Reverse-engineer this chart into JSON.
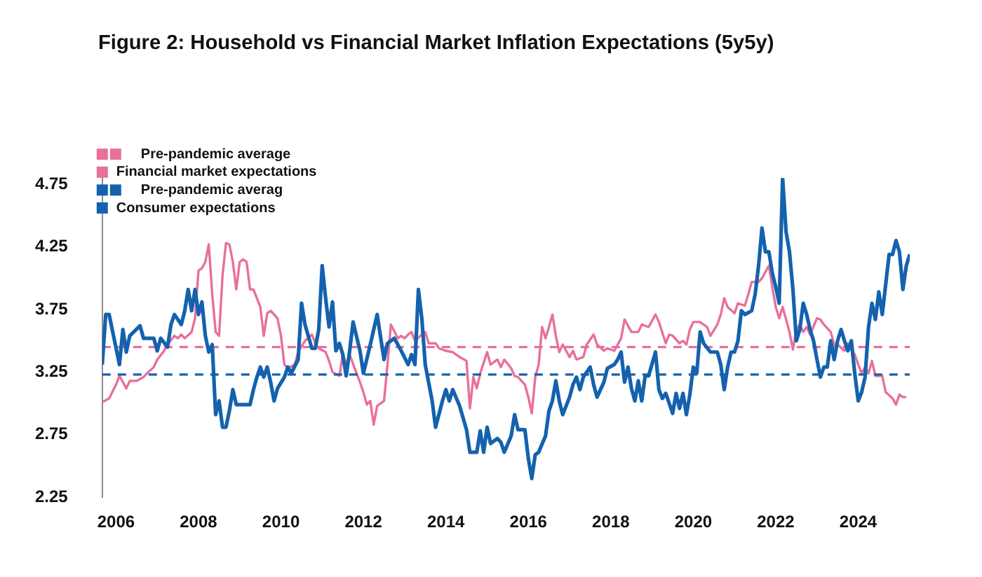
{
  "chart_data": {
    "type": "line",
    "title": "Figure 2: Household vs Financial Market Inflation Expectations (5y5y)",
    "xlim": [
      "2005-09",
      "2025-04"
    ],
    "xticks": [
      "2006",
      "2008",
      "2010",
      "2012",
      "2014",
      "2016",
      "2018",
      "2020",
      "2022",
      "2024"
    ],
    "ylim": [
      2.25,
      4.8
    ],
    "yticks": [
      2.25,
      2.75,
      3.25,
      3.75,
      4.25,
      4.75
    ],
    "legend": "top left",
    "series": [
      {
        "name": "Pre-pandemic average",
        "color": "#e8709c",
        "line_style": "dashed",
        "x": [
          "2005-09",
          "2025-04"
        ],
        "values": [
          3.45,
          3.45
        ]
      },
      {
        "name": "Financial market expectations",
        "color": "#e8709c",
        "x": [
          "2005-09",
          "2005-11",
          "2006-01",
          "2006-02",
          "2006-04",
          "2006-05",
          "2006-07",
          "2006-09",
          "2006-10",
          "2006-12",
          "2007-01",
          "2007-03",
          "2007-04",
          "2007-06",
          "2007-07",
          "2007-08",
          "2007-09",
          "2007-11",
          "2007-12",
          "2008-01",
          "2008-02",
          "2008-03",
          "2008-04",
          "2008-05",
          "2008-06",
          "2008-07",
          "2008-08",
          "2008-09",
          "2008-10",
          "2008-11",
          "2008-12",
          "2009-01",
          "2009-02",
          "2009-03",
          "2009-04",
          "2009-05",
          "2009-06",
          "2009-07",
          "2009-08",
          "2009-09",
          "2009-10",
          "2009-12",
          "2010-01",
          "2010-02",
          "2010-03",
          "2010-05",
          "2010-06",
          "2010-08",
          "2010-10",
          "2010-11",
          "2010-12",
          "2011-02",
          "2011-03",
          "2011-04",
          "2011-06",
          "2011-07",
          "2011-08",
          "2011-09",
          "2011-11",
          "2011-12",
          "2012-01",
          "2012-02",
          "2012-03",
          "2012-04",
          "2012-05",
          "2012-07",
          "2012-08",
          "2012-09",
          "2012-11",
          "2012-12",
          "2013-01",
          "2013-02",
          "2013-03",
          "2013-04",
          "2013-06",
          "2013-07",
          "2013-08",
          "2013-10",
          "2013-11",
          "2014-01",
          "2014-03",
          "2014-05",
          "2014-07",
          "2014-08",
          "2014-09",
          "2014-10",
          "2014-11",
          "2015-01",
          "2015-02",
          "2015-04",
          "2015-05",
          "2015-06",
          "2015-08",
          "2015-09",
          "2015-10",
          "2015-12",
          "2016-01",
          "2016-02",
          "2016-03",
          "2016-04",
          "2016-05",
          "2016-06",
          "2016-07",
          "2016-08",
          "2016-09",
          "2016-10",
          "2016-11",
          "2017-01",
          "2017-02",
          "2017-03",
          "2017-05",
          "2017-06",
          "2017-08",
          "2017-09",
          "2017-11",
          "2017-12",
          "2018-02",
          "2018-04",
          "2018-05",
          "2018-07",
          "2018-09",
          "2018-10",
          "2018-12",
          "2019-02",
          "2019-03",
          "2019-05",
          "2019-06",
          "2019-07",
          "2019-09",
          "2019-10",
          "2019-11",
          "2019-12",
          "2020-01",
          "2020-03",
          "2020-05",
          "2020-06",
          "2020-08",
          "2020-09",
          "2020-10",
          "2020-11",
          "2021-01",
          "2021-02",
          "2021-04",
          "2021-05",
          "2021-06",
          "2021-08",
          "2021-09",
          "2021-11",
          "2021-12",
          "2022-01",
          "2022-02",
          "2022-03",
          "2022-04",
          "2022-05",
          "2022-06",
          "2022-07",
          "2022-08",
          "2022-09",
          "2022-10",
          "2022-11",
          "2023-01",
          "2023-02",
          "2023-03",
          "2023-05",
          "2023-06",
          "2023-07",
          "2023-09",
          "2023-10",
          "2023-12",
          "2024-01",
          "2024-02",
          "2024-03",
          "2024-04",
          "2024-05",
          "2024-06",
          "2024-08",
          "2024-09",
          "2024-11",
          "2024-12",
          "2025-01",
          "2025-02",
          "2025-03"
        ],
        "values": [
          3.01,
          3.04,
          3.15,
          3.22,
          3.12,
          3.18,
          3.18,
          3.21,
          3.24,
          3.29,
          3.35,
          3.42,
          3.47,
          3.54,
          3.52,
          3.55,
          3.52,
          3.57,
          3.68,
          4.06,
          4.08,
          4.13,
          4.27,
          3.87,
          3.57,
          3.54,
          4.02,
          4.28,
          4.27,
          4.13,
          3.91,
          4.13,
          4.15,
          4.13,
          3.91,
          3.91,
          3.84,
          3.77,
          3.54,
          3.72,
          3.74,
          3.68,
          3.54,
          3.31,
          3.28,
          3.31,
          3.41,
          3.5,
          3.55,
          3.48,
          3.44,
          3.41,
          3.34,
          3.25,
          3.22,
          3.39,
          3.31,
          3.39,
          3.24,
          3.17,
          3.09,
          2.99,
          3.02,
          2.83,
          2.98,
          3.02,
          3.31,
          3.63,
          3.52,
          3.54,
          3.52,
          3.55,
          3.57,
          3.5,
          3.55,
          3.57,
          3.48,
          3.48,
          3.44,
          3.42,
          3.41,
          3.37,
          3.34,
          2.96,
          3.21,
          3.12,
          3.24,
          3.41,
          3.31,
          3.35,
          3.29,
          3.35,
          3.28,
          3.22,
          3.21,
          3.15,
          3.05,
          2.92,
          3.21,
          3.31,
          3.61,
          3.52,
          3.61,
          3.71,
          3.54,
          3.41,
          3.47,
          3.37,
          3.42,
          3.35,
          3.37,
          3.47,
          3.55,
          3.47,
          3.42,
          3.44,
          3.42,
          3.52,
          3.67,
          3.57,
          3.57,
          3.63,
          3.61,
          3.71,
          3.65,
          3.48,
          3.55,
          3.54,
          3.48,
          3.5,
          3.47,
          3.59,
          3.65,
          3.65,
          3.61,
          3.54,
          3.63,
          3.71,
          3.84,
          3.77,
          3.72,
          3.8,
          3.78,
          3.87,
          3.97,
          3.97,
          4.0,
          4.1,
          3.93,
          3.77,
          3.68,
          3.77,
          3.67,
          3.57,
          3.43,
          3.59,
          3.63,
          3.57,
          3.61,
          3.55,
          3.68,
          3.67,
          3.63,
          3.57,
          3.47,
          3.47,
          3.42,
          3.48,
          3.39,
          3.31,
          3.24,
          3.29,
          3.24,
          3.34,
          3.22,
          3.22,
          3.09,
          3.04,
          2.99,
          3.07,
          3.05,
          3.05
        ]
      },
      {
        "name": "Pre-pandemic averag",
        "color": "#1462ae",
        "line_style": "dashed",
        "x": [
          "2005-09",
          "2025-04"
        ],
        "values": [
          3.23,
          3.23
        ]
      },
      {
        "name": "Consumer expectations",
        "color": "#1462ae",
        "x": [
          "2005-09",
          "2005-10",
          "2005-11",
          "2006-02",
          "2006-03",
          "2006-04",
          "2006-05",
          "2006-08",
          "2006-09",
          "2006-12",
          "2007-01",
          "2007-02",
          "2007-04",
          "2007-05",
          "2007-06",
          "2007-08",
          "2007-09",
          "2007-10",
          "2007-11",
          "2007-12",
          "2008-01",
          "2008-02",
          "2008-03",
          "2008-04",
          "2008-05",
          "2008-06",
          "2008-07",
          "2008-08",
          "2008-09",
          "2008-10",
          "2008-11",
          "2008-12",
          "2009-04",
          "2009-05",
          "2009-06",
          "2009-07",
          "2009-08",
          "2009-09",
          "2009-10",
          "2009-11",
          "2009-12",
          "2010-02",
          "2010-03",
          "2010-04",
          "2010-06",
          "2010-07",
          "2010-08",
          "2010-10",
          "2010-11",
          "2010-12",
          "2011-01",
          "2011-02",
          "2011-03",
          "2011-04",
          "2011-05",
          "2011-06",
          "2011-07",
          "2011-08",
          "2011-09",
          "2011-10",
          "2011-12",
          "2012-01",
          "2012-03",
          "2012-05",
          "2012-07",
          "2012-08",
          "2012-10",
          "2012-12",
          "2013-02",
          "2013-03",
          "2013-04",
          "2013-05",
          "2013-06",
          "2013-07",
          "2013-09",
          "2013-10",
          "2013-12",
          "2014-01",
          "2014-02",
          "2014-03",
          "2014-05",
          "2014-07",
          "2014-08",
          "2014-10",
          "2014-11",
          "2014-12",
          "2015-01",
          "2015-02",
          "2015-04",
          "2015-05",
          "2015-06",
          "2015-08",
          "2015-09",
          "2015-10",
          "2015-12",
          "2016-01",
          "2016-02",
          "2016-03",
          "2016-04",
          "2016-06",
          "2016-07",
          "2016-08",
          "2016-09",
          "2016-10",
          "2016-11",
          "2017-01",
          "2017-02",
          "2017-03",
          "2017-04",
          "2017-05",
          "2017-07",
          "2017-08",
          "2017-09",
          "2017-11",
          "2017-12",
          "2018-02",
          "2018-03",
          "2018-04",
          "2018-05",
          "2018-06",
          "2018-07",
          "2018-08",
          "2018-09",
          "2018-10",
          "2018-11",
          "2018-12",
          "2019-02",
          "2019-03",
          "2019-04",
          "2019-05",
          "2019-07",
          "2019-08",
          "2019-09",
          "2019-10",
          "2019-11",
          "2019-12",
          "2020-01",
          "2020-02",
          "2020-03",
          "2020-04",
          "2020-06",
          "2020-08",
          "2020-09",
          "2020-10",
          "2020-11",
          "2020-12",
          "2021-01",
          "2021-02",
          "2021-03",
          "2021-04",
          "2021-06",
          "2021-07",
          "2021-08",
          "2021-09",
          "2021-10",
          "2021-11",
          "2021-12",
          "2022-01",
          "2022-02",
          "2022-03",
          "2022-04",
          "2022-05",
          "2022-06",
          "2022-07",
          "2022-08",
          "2022-09",
          "2022-10",
          "2022-11",
          "2022-12",
          "2023-01",
          "2023-02",
          "2023-03",
          "2023-04",
          "2023-05",
          "2023-06",
          "2023-07",
          "2023-08",
          "2023-09",
          "2023-10",
          "2023-11",
          "2023-12",
          "2024-01",
          "2024-02",
          "2024-03",
          "2024-04",
          "2024-05",
          "2024-06",
          "2024-07",
          "2024-08",
          "2024-09",
          "2024-10",
          "2024-11",
          "2024-12",
          "2025-01",
          "2025-02",
          "2025-03",
          "2025-04"
        ],
        "values": [
          3.31,
          3.71,
          3.71,
          3.31,
          3.59,
          3.41,
          3.54,
          3.62,
          3.52,
          3.52,
          3.42,
          3.52,
          3.45,
          3.63,
          3.71,
          3.63,
          3.74,
          3.91,
          3.74,
          3.91,
          3.71,
          3.81,
          3.54,
          3.41,
          3.47,
          2.91,
          3.02,
          2.81,
          2.81,
          2.94,
          3.11,
          2.99,
          2.99,
          3.11,
          3.21,
          3.29,
          3.21,
          3.29,
          3.17,
          3.02,
          3.12,
          3.21,
          3.29,
          3.24,
          3.35,
          3.8,
          3.63,
          3.44,
          3.44,
          3.59,
          4.1,
          3.84,
          3.61,
          3.81,
          3.42,
          3.48,
          3.39,
          3.22,
          3.42,
          3.65,
          3.42,
          3.24,
          3.47,
          3.71,
          3.35,
          3.48,
          3.52,
          3.42,
          3.31,
          3.39,
          3.31,
          3.91,
          3.68,
          3.31,
          3.02,
          2.81,
          3.02,
          3.11,
          3.02,
          3.11,
          2.98,
          2.79,
          2.61,
          2.61,
          2.78,
          2.61,
          2.81,
          2.68,
          2.72,
          2.69,
          2.61,
          2.74,
          2.91,
          2.79,
          2.79,
          2.56,
          2.4,
          2.59,
          2.61,
          2.74,
          2.94,
          3.02,
          3.18,
          3.02,
          2.91,
          3.05,
          3.15,
          3.21,
          3.11,
          3.21,
          3.29,
          3.15,
          3.05,
          3.17,
          3.28,
          3.31,
          3.35,
          3.41,
          3.17,
          3.29,
          3.12,
          3.02,
          3.18,
          3.02,
          3.22,
          3.22,
          3.41,
          3.11,
          3.04,
          3.08,
          2.92,
          3.08,
          2.96,
          3.08,
          2.91,
          3.07,
          3.29,
          3.24,
          3.57,
          3.48,
          3.41,
          3.41,
          3.31,
          3.11,
          3.29,
          3.41,
          3.41,
          3.5,
          3.74,
          3.71,
          3.74,
          3.87,
          4.1,
          4.4,
          4.21,
          4.21,
          4.04,
          3.93,
          3.8,
          4.8,
          4.37,
          4.21,
          3.91,
          3.5,
          3.59,
          3.8,
          3.71,
          3.59,
          3.5,
          3.35,
          3.21,
          3.29,
          3.29,
          3.5,
          3.35,
          3.5,
          3.59,
          3.5,
          3.42,
          3.5,
          3.24,
          3.02,
          3.09,
          3.21,
          3.61,
          3.8,
          3.67,
          3.89,
          3.71,
          3.95,
          4.19,
          4.19,
          4.3,
          4.21,
          3.91,
          4.1,
          4.19
        ]
      }
    ]
  }
}
